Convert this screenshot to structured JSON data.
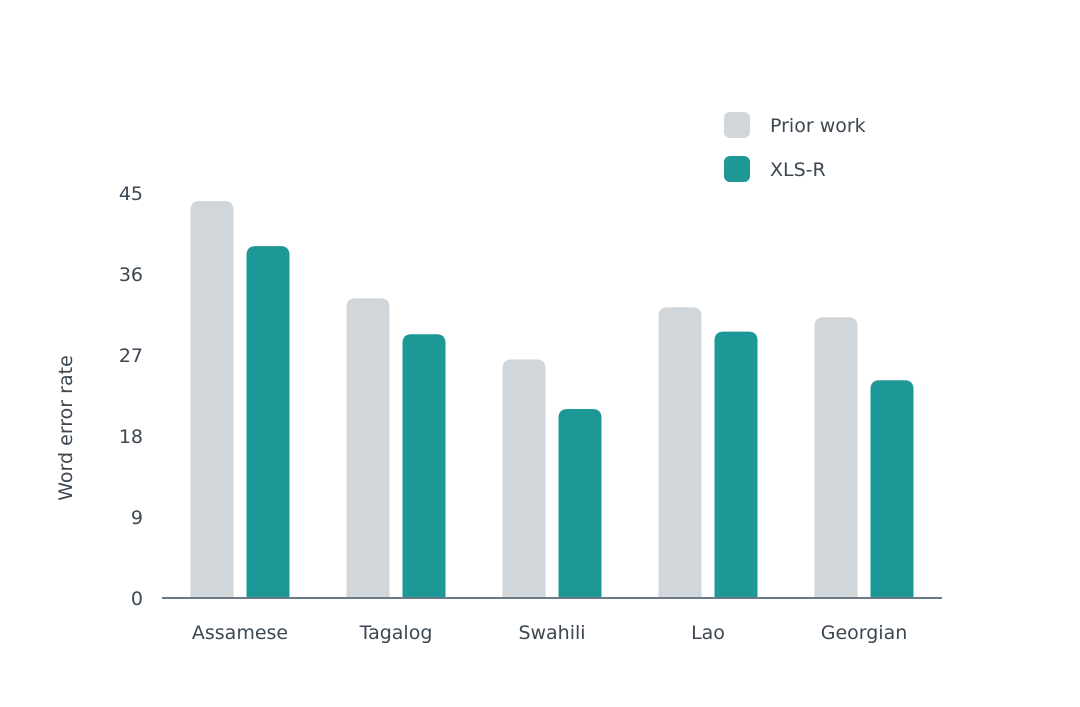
{
  "chart_data": {
    "type": "bar",
    "title": "",
    "xlabel": "",
    "ylabel": "Word error rate",
    "categories": [
      "Assamese",
      "Tagalog",
      "Swahili",
      "Lao",
      "Georgian"
    ],
    "series": [
      {
        "name": "Prior work",
        "values": [
          44.1,
          33.3,
          26.5,
          32.3,
          31.2
        ],
        "color": "#d0d6da"
      },
      {
        "name": "XLS-R",
        "values": [
          39.1,
          29.3,
          21.0,
          29.6,
          24.2
        ],
        "color": "#1e9896"
      }
    ],
    "ylim": [
      0,
      45
    ],
    "yticks": [
      0,
      9,
      18,
      27,
      36,
      45
    ],
    "grid": false,
    "legend_position": "top-right",
    "axis_color": "#6b7a86",
    "text_color": "#3b4752"
  }
}
